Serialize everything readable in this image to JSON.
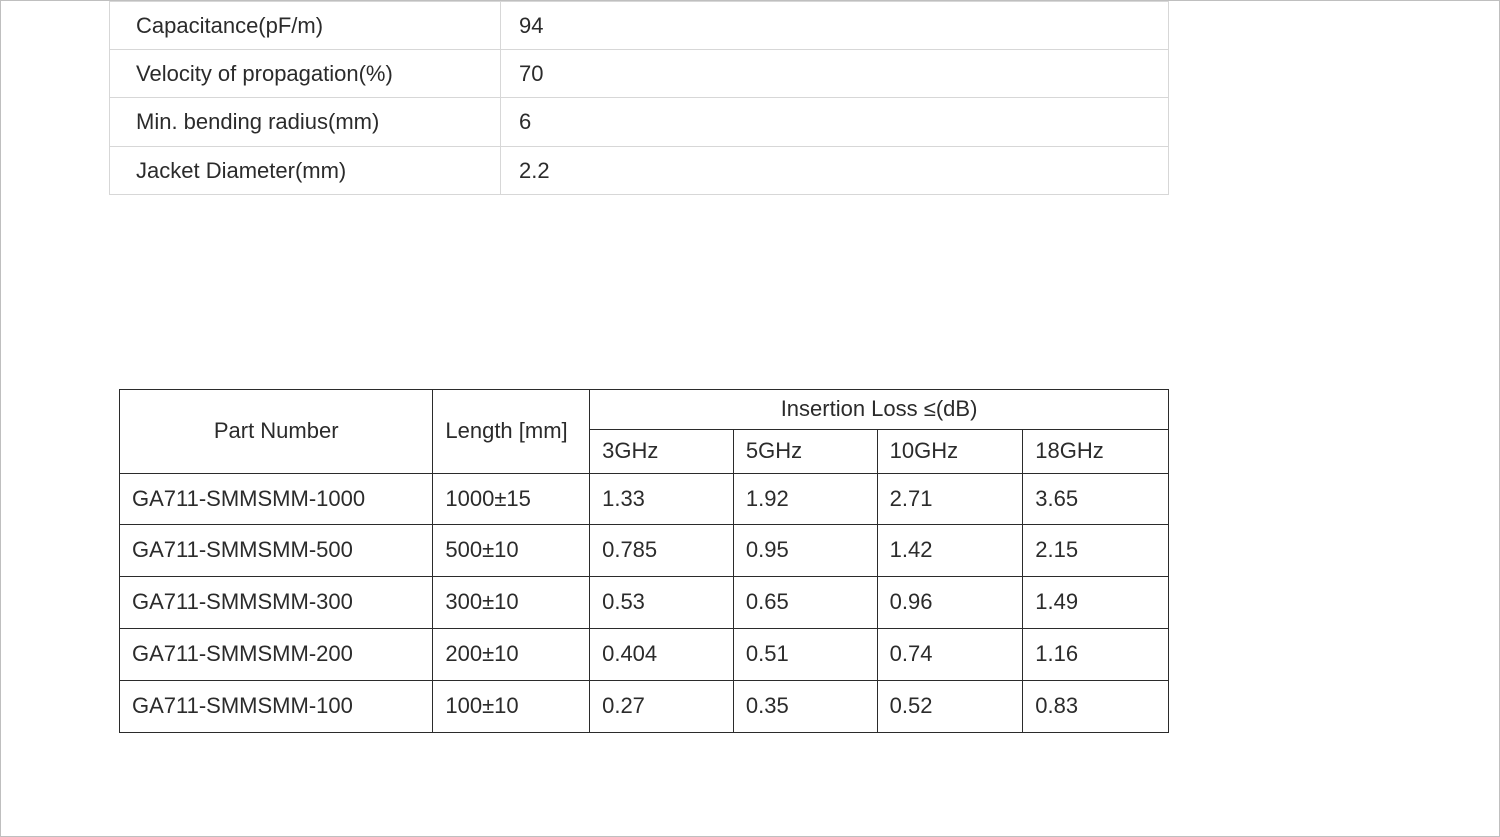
{
  "properties": {
    "rows": [
      {
        "label": "Capacitance(pF/m)",
        "value": "94"
      },
      {
        "label": "Velocity of propagation(%)",
        "value": "70"
      },
      {
        "label": "Min. bending radius(mm)",
        "value": "6"
      },
      {
        "label": "Jacket Diameter(mm)",
        "value": "2.2"
      }
    ],
    "border_color": "#d7d7d7",
    "font_size_pt": 16
  },
  "parts_table": {
    "headers": {
      "part": "Part Number",
      "length": "Length [mm]",
      "iloss": "Insertion Loss ≤(dB)",
      "freqs": [
        "3GHz",
        "5GHz",
        "10GHz",
        "18GHz"
      ]
    },
    "rows": [
      {
        "part": "GA711-SMMSMM-1000",
        "length": "1000±15",
        "loss": [
          "1.33",
          "1.92",
          "2.71",
          "3.65"
        ]
      },
      {
        "part": "GA711-SMMSMM-500",
        "length": "500±10",
        "loss": [
          "0.785",
          "0.95",
          "1.42",
          "2.15"
        ]
      },
      {
        "part": "GA711-SMMSMM-300",
        "length": "300±10",
        "loss": [
          "0.53",
          "0.65",
          "0.96",
          "1.49"
        ]
      },
      {
        "part": "GA711-SMMSMM-200",
        "length": "200±10",
        "loss": [
          "0.404",
          "0.51",
          "0.74",
          "1.16"
        ]
      },
      {
        "part": "GA711-SMMSMM-100",
        "length": "100±10",
        "loss": [
          "0.27",
          "0.35",
          "0.52",
          "0.83"
        ]
      }
    ],
    "border_color": "#2b2b2b",
    "font_size_pt": 16
  },
  "colors": {
    "page_bg": "#ffffff",
    "text": "#2b2b2b"
  }
}
